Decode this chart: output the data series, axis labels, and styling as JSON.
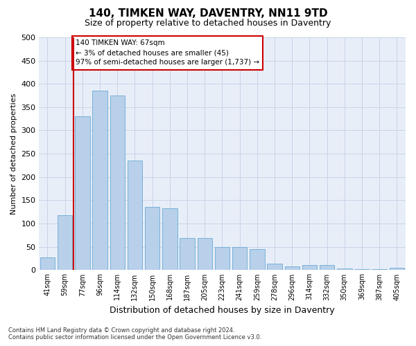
{
  "title": "140, TIMKEN WAY, DAVENTRY, NN11 9TD",
  "subtitle": "Size of property relative to detached houses in Daventry",
  "xlabel": "Distribution of detached houses by size in Daventry",
  "ylabel": "Number of detached properties",
  "categories": [
    "41sqm",
    "59sqm",
    "77sqm",
    "96sqm",
    "114sqm",
    "132sqm",
    "150sqm",
    "168sqm",
    "187sqm",
    "205sqm",
    "223sqm",
    "241sqm",
    "259sqm",
    "278sqm",
    "296sqm",
    "314sqm",
    "332sqm",
    "350sqm",
    "369sqm",
    "387sqm",
    "405sqm"
  ],
  "values": [
    27,
    117,
    330,
    385,
    375,
    235,
    135,
    133,
    68,
    68,
    50,
    50,
    45,
    13,
    7,
    11,
    10,
    3,
    2,
    2,
    5
  ],
  "bar_color": "#b8d0ea",
  "bar_edge_color": "#6aaad4",
  "grid_color": "#c8d4e8",
  "background_color": "#e8eef8",
  "vline_x": 1.5,
  "vline_color": "#cc0000",
  "annotation_text": "140 TIMKEN WAY: 67sqm\n← 3% of detached houses are smaller (45)\n97% of semi-detached houses are larger (1,737) →",
  "annotation_box_color": "#ffffff",
  "annotation_box_edge": "#cc0000",
  "footer": "Contains HM Land Registry data © Crown copyright and database right 2024.\nContains public sector information licensed under the Open Government Licence v3.0.",
  "ylim": [
    0,
    500
  ],
  "yticks": [
    0,
    50,
    100,
    150,
    200,
    250,
    300,
    350,
    400,
    450,
    500
  ]
}
